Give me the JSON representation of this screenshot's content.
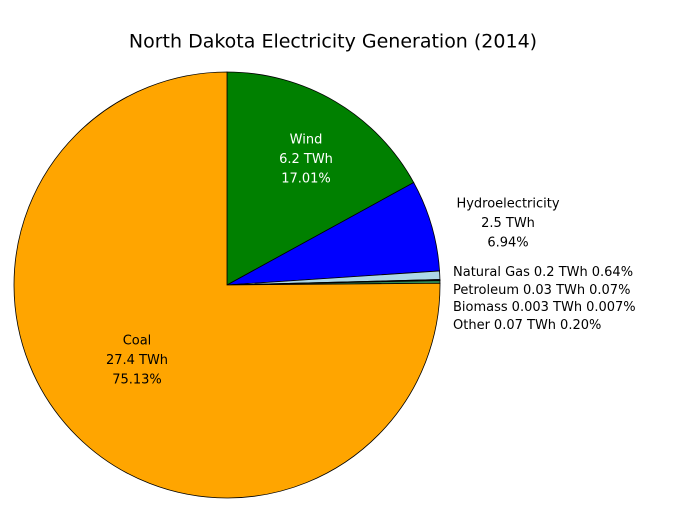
{
  "chart_data": {
    "type": "pie",
    "title": "North Dakota Electricity Generation (2014)",
    "categories": [
      "Wind",
      "Hydroelectricity",
      "Natural Gas",
      "Petroleum",
      "Biomass",
      "Other",
      "Coal"
    ],
    "values": [
      17.01,
      6.94,
      0.64,
      0.07,
      0.007,
      0.2,
      75.13
    ],
    "value_labels": [
      "17.01%",
      "6.94%",
      "0.64%",
      "0.07%",
      "0.007%",
      "0.20%",
      "75.13%"
    ],
    "twh": [
      6.2,
      2.5,
      0.2,
      0.03,
      0.003,
      0.07,
      27.4
    ],
    "twh_labels": [
      "6.2 TWh",
      "2.5 TWh",
      "0.2 TWh",
      "0.03 TWh",
      "0.003 TWh",
      "0.07 TWh",
      "27.4 TWh"
    ],
    "colors": [
      "#008000",
      "#0000ff",
      "#add8e6",
      "#808080",
      "#8b4513",
      "#2e8b57",
      "#ffa500"
    ]
  }
}
